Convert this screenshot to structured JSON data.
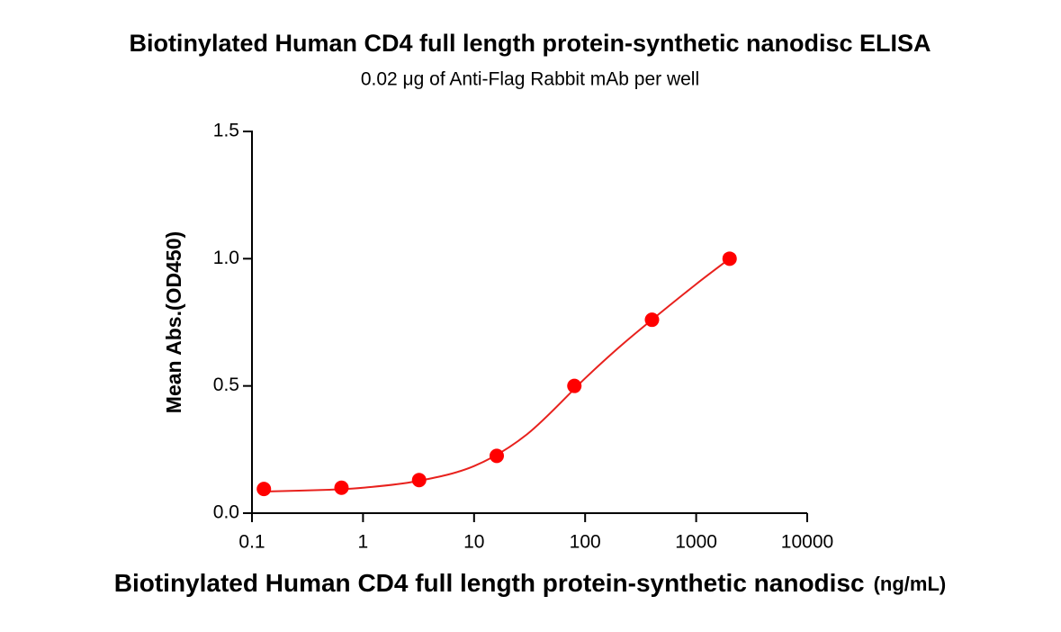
{
  "chart_data": {
    "type": "scatter",
    "title": "Biotinylated Human CD4 full length protein-synthetic nanodisc ELISA",
    "subtitle": "0.02 μg of Anti-Flag Rabbit mAb per well",
    "x_label": "Biotinylated Human CD4 full length protein-synthetic nanodisc",
    "x_label_unit": "(ng/mL)",
    "y_label": "Mean Abs.(OD450)",
    "x_scale": "log",
    "xlim": [
      0.1,
      10000
    ],
    "xticks": [
      0.1,
      1,
      10,
      100,
      1000,
      10000
    ],
    "ylim": [
      0,
      1.5
    ],
    "yticks": [
      {
        "value": 0,
        "label": "0.0"
      },
      0.5,
      {
        "value": 1,
        "label": "1.0"
      },
      1.5
    ],
    "series": [
      {
        "color": "#ff0000",
        "x": [
          0.128,
          0.64,
          3.2,
          16,
          80,
          400,
          2000
        ],
        "values": [
          0.095,
          0.1,
          0.13,
          0.225,
          0.5,
          0.76,
          1.0
        ]
      }
    ],
    "fit": {
      "color": "#e8211d",
      "x": [
        0.128,
        0.5,
        1,
        3,
        10,
        30,
        100,
        200,
        400,
        1000,
        2000
      ],
      "y": [
        0.085,
        0.092,
        0.1,
        0.125,
        0.185,
        0.31,
        0.53,
        0.65,
        0.76,
        0.9,
        1.0
      ]
    }
  }
}
